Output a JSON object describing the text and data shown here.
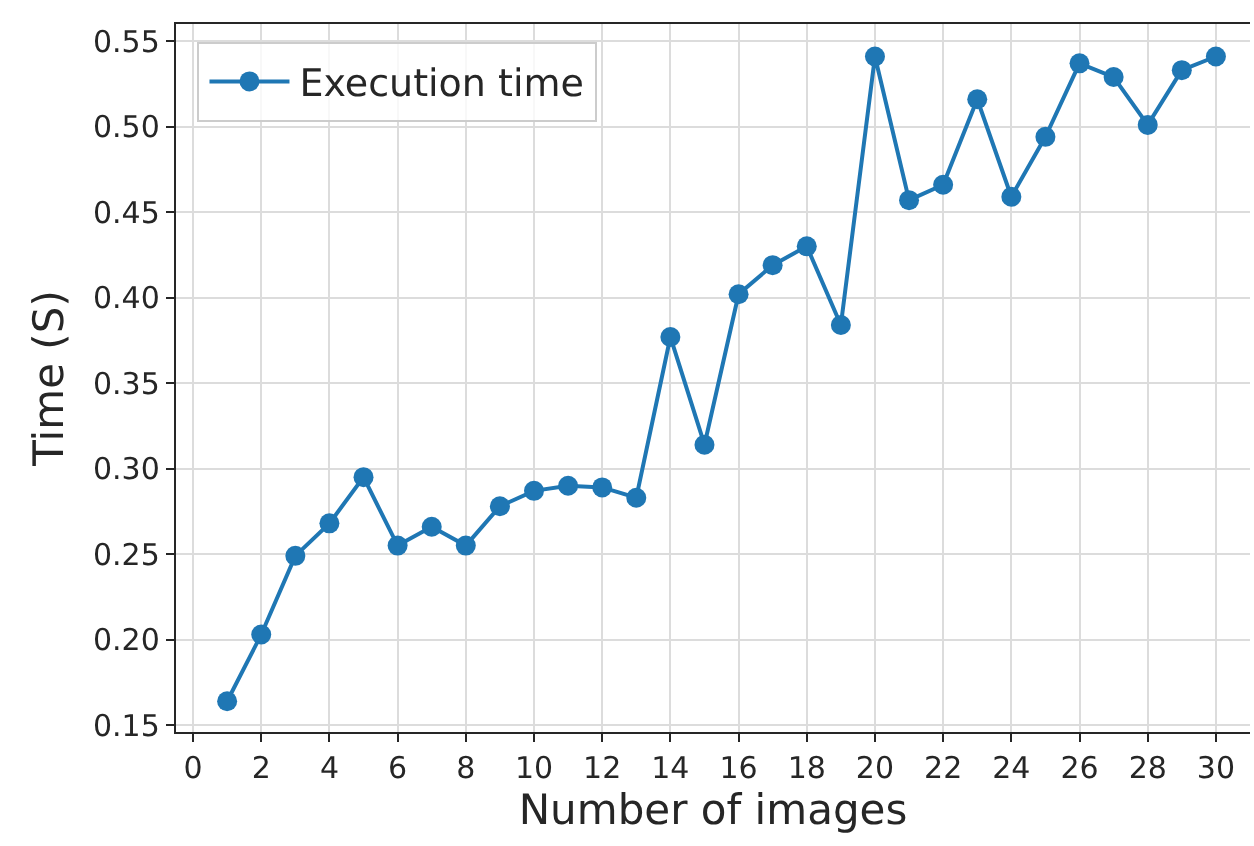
{
  "chart_data": {
    "type": "line",
    "xlabel": "Number of images",
    "ylabel": "Time (S)",
    "x": [
      1,
      2,
      3,
      4,
      5,
      6,
      7,
      8,
      9,
      10,
      11,
      12,
      13,
      14,
      15,
      16,
      17,
      18,
      19,
      20,
      21,
      22,
      23,
      24,
      25,
      26,
      27,
      28,
      29,
      30
    ],
    "series": [
      {
        "name": "Execution time",
        "color": "#1f77b4",
        "values": [
          0.164,
          0.203,
          0.249,
          0.268,
          0.295,
          0.255,
          0.266,
          0.255,
          0.278,
          0.287,
          0.29,
          0.289,
          0.283,
          0.377,
          0.314,
          0.402,
          0.419,
          0.43,
          0.384,
          0.541,
          0.457,
          0.466,
          0.516,
          0.459,
          0.494,
          0.537,
          0.529,
          0.501,
          0.533,
          0.541
        ]
      }
    ],
    "xlim": [
      -0.5,
      31
    ],
    "ylim": [
      0.146,
      0.56
    ],
    "xticks": [
      0,
      2,
      4,
      6,
      8,
      10,
      12,
      14,
      16,
      18,
      20,
      22,
      24,
      26,
      28,
      30
    ],
    "yticks": [
      {
        "value": 0.15,
        "label": "0.15"
      },
      {
        "value": 0.2,
        "label": "0.20"
      },
      {
        "value": 0.25,
        "label": "0.25"
      },
      {
        "value": 0.3,
        "label": "0.30"
      },
      {
        "value": 0.35,
        "label": "0.35"
      },
      {
        "value": 0.4,
        "label": "0.40"
      },
      {
        "value": 0.45,
        "label": "0.45"
      },
      {
        "value": 0.5,
        "label": "0.50"
      },
      {
        "value": 0.55,
        "label": "0.55"
      }
    ],
    "grid": true,
    "legend": "top left",
    "marker": "circle",
    "line_style": "solid"
  }
}
